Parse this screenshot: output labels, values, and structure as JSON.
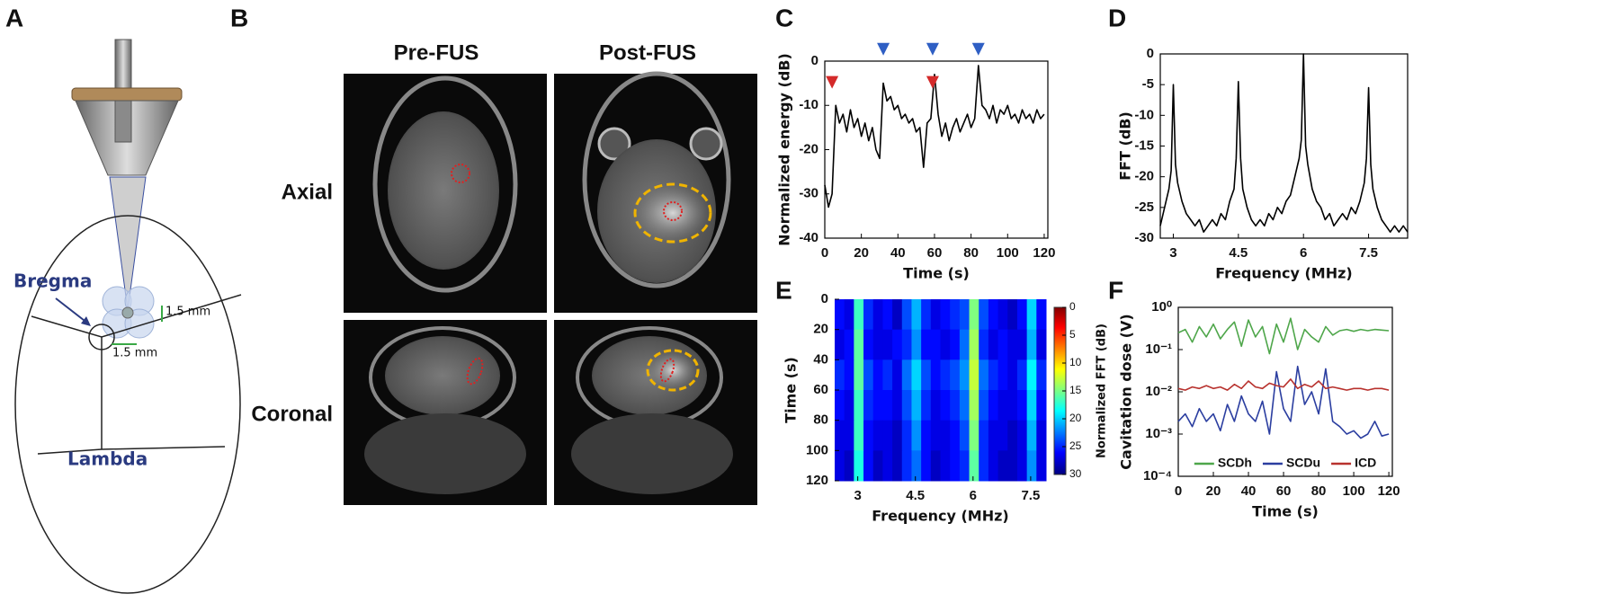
{
  "panels": {
    "A": {
      "label": "A",
      "bregma": "Bregma",
      "lambda": "Lambda",
      "offset_vertical": "1.5 mm",
      "offset_horizontal": "1.5 mm"
    },
    "B": {
      "label": "B",
      "columns": [
        "Pre-FUS",
        "Post-FUS"
      ],
      "rows": [
        "Axial",
        "Coronal"
      ]
    }
  },
  "chart_data": [
    {
      "type": "line",
      "panel": "C",
      "xlabel": "Time (s)",
      "ylabel": "Normalized energy (dB)",
      "color": "#000000",
      "x": [
        0,
        2,
        4,
        6,
        8,
        10,
        12,
        14,
        16,
        18,
        20,
        22,
        24,
        26,
        28,
        30,
        32,
        34,
        36,
        38,
        40,
        42,
        44,
        46,
        48,
        50,
        52,
        54,
        56,
        58,
        60,
        62,
        64,
        66,
        68,
        70,
        72,
        74,
        76,
        78,
        80,
        82,
        84,
        86,
        88,
        90,
        92,
        94,
        96,
        98,
        100,
        102,
        104,
        106,
        108,
        110,
        112,
        114,
        116,
        118,
        120
      ],
      "values": [
        -28,
        -33,
        -30,
        -10,
        -14,
        -12,
        -16,
        -11,
        -15,
        -13,
        -17,
        -14,
        -18,
        -15,
        -20,
        -22,
        -5,
        -9,
        -8,
        -11,
        -10,
        -13,
        -12,
        -14,
        -13,
        -16,
        -15,
        -24,
        -14,
        -13,
        -3,
        -12,
        -17,
        -14,
        -18,
        -15,
        -13,
        -16,
        -14,
        -12,
        -15,
        -13,
        -1,
        -10,
        -11,
        -13,
        -10,
        -14,
        -11,
        -12,
        -10,
        -13,
        -12,
        -14,
        -11,
        -13,
        -12,
        -14,
        -11,
        -13,
        -12
      ],
      "markers": [
        {
          "x": 4,
          "y": -5,
          "color": "#d42a2a"
        },
        {
          "x": 32,
          "y": 2.5,
          "color": "#2f5fc4"
        },
        {
          "x": 59,
          "y": 2.5,
          "color": "#2f5fc4"
        },
        {
          "x": 59,
          "y": -5,
          "color": "#d42a2a"
        },
        {
          "x": 84,
          "y": 2.5,
          "color": "#2f5fc4"
        }
      ],
      "xlim": [
        0,
        122
      ],
      "ylim": [
        -40,
        0
      ],
      "xticks": [
        0,
        20,
        40,
        60,
        80,
        100,
        120
      ],
      "yticks": [
        0,
        -10,
        -20,
        -30,
        -40
      ],
      "frame": true
    },
    {
      "type": "line",
      "panel": "D",
      "xlabel": "Frequency (MHz)",
      "ylabel": "FFT (dB)",
      "color": "#000000",
      "x": [
        2.7,
        2.8,
        2.9,
        2.95,
        3,
        3.05,
        3.1,
        3.2,
        3.3,
        3.4,
        3.5,
        3.6,
        3.7,
        3.8,
        3.9,
        4,
        4.1,
        4.2,
        4.3,
        4.4,
        4.45,
        4.5,
        4.55,
        4.6,
        4.7,
        4.8,
        4.9,
        5,
        5.1,
        5.2,
        5.3,
        5.4,
        5.5,
        5.6,
        5.7,
        5.8,
        5.9,
        5.95,
        6,
        6.05,
        6.1,
        6.2,
        6.3,
        6.4,
        6.5,
        6.6,
        6.7,
        6.8,
        6.9,
        7,
        7.1,
        7.2,
        7.3,
        7.4,
        7.45,
        7.5,
        7.55,
        7.6,
        7.7,
        7.8,
        7.9,
        8,
        8.1,
        8.2,
        8.3,
        8.4
      ],
      "values": [
        -28,
        -25,
        -22,
        -19,
        -5,
        -18,
        -21,
        -24,
        -26,
        -27,
        -28,
        -27,
        -29,
        -28,
        -27,
        -28,
        -26,
        -27,
        -24,
        -22,
        -17,
        -4.5,
        -17,
        -22,
        -25,
        -27,
        -28,
        -27,
        -28,
        -26,
        -27,
        -25,
        -26,
        -24,
        -23,
        -20,
        -17,
        -14,
        0,
        -15,
        -18,
        -22,
        -24,
        -25,
        -27,
        -26,
        -28,
        -27,
        -26,
        -27,
        -25,
        -26,
        -24,
        -21,
        -17,
        -5.5,
        -18,
        -22,
        -25,
        -27,
        -28,
        -29,
        -28,
        -29,
        -28,
        -29
      ],
      "xlim": [
        2.7,
        8.4
      ],
      "ylim": [
        -30,
        0
      ],
      "xticks": [
        3,
        4.5,
        6,
        7.5
      ],
      "yticks": [
        0,
        -5,
        -10,
        -15,
        -20,
        -25,
        -30
      ],
      "frame": true
    },
    {
      "type": "heatmap",
      "panel": "E",
      "xlabel": "Frequency (MHz)",
      "ylabel": "Time (s)",
      "xbins": [
        2.4,
        2.65,
        2.9,
        3.15,
        3.4,
        3.65,
        3.9,
        4.15,
        4.4,
        4.65,
        4.9,
        5.15,
        5.4,
        5.65,
        5.9,
        6.15,
        6.4,
        6.65,
        6.9,
        7.15,
        7.4,
        7.65,
        7.9
      ],
      "ybins": [
        0,
        20,
        40,
        60,
        80,
        100,
        120
      ],
      "z": [
        [
          26,
          27,
          17,
          25,
          27,
          26,
          28,
          24,
          21,
          25,
          27,
          26,
          25,
          24,
          15,
          24,
          26,
          27,
          28,
          26,
          20,
          26
        ],
        [
          27,
          26,
          16,
          26,
          27,
          27,
          26,
          25,
          22,
          26,
          26,
          27,
          26,
          23,
          14,
          25,
          27,
          26,
          27,
          27,
          21,
          27
        ],
        [
          25,
          26,
          16,
          24,
          26,
          25,
          27,
          23,
          20,
          24,
          26,
          25,
          24,
          22,
          13,
          23,
          25,
          26,
          27,
          25,
          19,
          25
        ],
        [
          26,
          27,
          17,
          25,
          26,
          26,
          27,
          24,
          21,
          25,
          27,
          26,
          25,
          23,
          14,
          24,
          26,
          27,
          27,
          26,
          20,
          26
        ],
        [
          27,
          27,
          17,
          26,
          27,
          27,
          28,
          25,
          22,
          26,
          27,
          27,
          26,
          24,
          15,
          25,
          27,
          27,
          28,
          27,
          21,
          27
        ],
        [
          27,
          28,
          18,
          26,
          28,
          27,
          28,
          25,
          23,
          26,
          28,
          27,
          26,
          25,
          16,
          25,
          27,
          28,
          28,
          27,
          22,
          27
        ]
      ],
      "xlim": [
        2.4,
        7.9
      ],
      "ylim": [
        0,
        120
      ],
      "invert_y": true,
      "xticks": [
        3,
        4.5,
        6,
        7.5
      ],
      "yticks": [
        0,
        20,
        40,
        60,
        80,
        100,
        120
      ],
      "colorbar": {
        "label": "Normalized FFT (dB)",
        "lim": [
          0,
          30
        ],
        "ticks": [
          0,
          5,
          10,
          15,
          20,
          25,
          30
        ],
        "colormap": "jet"
      }
    },
    {
      "type": "line",
      "panel": "F",
      "xlabel": "Time (s)",
      "ylabel": "Cavitation dose (V)",
      "log_y": true,
      "legend": "lower center",
      "frame": true,
      "x": [
        0,
        4,
        8,
        12,
        16,
        20,
        24,
        28,
        32,
        36,
        40,
        44,
        48,
        52,
        56,
        60,
        64,
        68,
        72,
        76,
        80,
        84,
        88,
        92,
        96,
        100,
        104,
        108,
        112,
        116,
        120
      ],
      "series": [
        {
          "name": "SCDh",
          "color": "#4ea64a",
          "values": [
            0.25,
            0.3,
            0.15,
            0.35,
            0.2,
            0.4,
            0.18,
            0.3,
            0.45,
            0.12,
            0.5,
            0.2,
            0.35,
            0.08,
            0.4,
            0.15,
            0.55,
            0.1,
            0.3,
            0.2,
            0.15,
            0.35,
            0.22,
            0.28,
            0.3,
            0.27,
            0.3,
            0.28,
            0.3,
            0.29,
            0.28
          ]
        },
        {
          "name": "SCDu",
          "color": "#2b3ea0",
          "values": [
            0.002,
            0.003,
            0.0015,
            0.004,
            0.002,
            0.003,
            0.0012,
            0.005,
            0.002,
            0.008,
            0.003,
            0.002,
            0.006,
            0.001,
            0.03,
            0.004,
            0.002,
            0.04,
            0.005,
            0.01,
            0.003,
            0.035,
            0.002,
            0.0015,
            0.001,
            0.0012,
            0.0008,
            0.001,
            0.002,
            0.0009,
            0.001
          ]
        },
        {
          "name": "ICD",
          "color": "#b8322e",
          "values": [
            0.012,
            0.011,
            0.013,
            0.012,
            0.014,
            0.012,
            0.013,
            0.011,
            0.015,
            0.012,
            0.018,
            0.013,
            0.012,
            0.016,
            0.014,
            0.013,
            0.02,
            0.012,
            0.015,
            0.013,
            0.018,
            0.012,
            0.013,
            0.012,
            0.011,
            0.012,
            0.012,
            0.011,
            0.012,
            0.012,
            0.011
          ]
        }
      ],
      "xlim": [
        0,
        122
      ],
      "ylim": [
        0.0001,
        1
      ],
      "xticks": [
        0,
        20,
        40,
        60,
        80,
        100,
        120
      ],
      "yticks": [
        {
          "value": 0.0001,
          "label": "10⁻⁴"
        },
        {
          "value": 0.001,
          "label": "10⁻³"
        },
        {
          "value": 0.01,
          "label": "10⁻²"
        },
        {
          "value": 0.1,
          "label": "10⁻¹"
        },
        {
          "value": 1,
          "label": "10⁰"
        }
      ]
    }
  ]
}
